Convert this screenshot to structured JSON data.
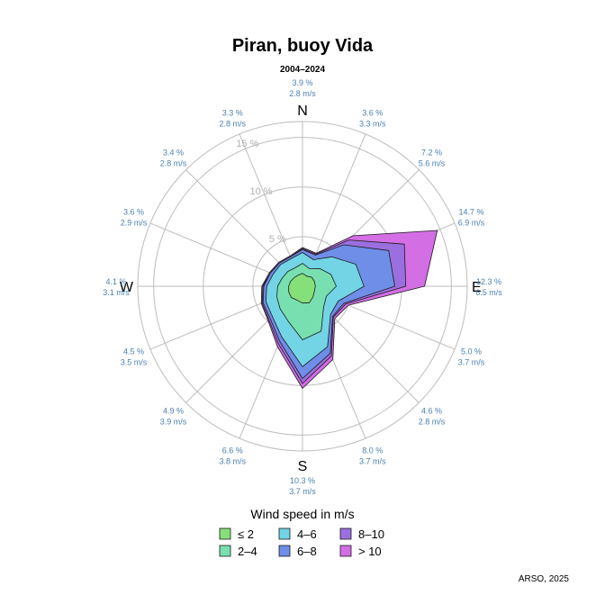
{
  "chart_data": {
    "type": "polar-area",
    "title": "Piran, buoy Vida",
    "subtitle": "2004–2024",
    "cardinals": [
      "N",
      "E",
      "S",
      "W"
    ],
    "rings": [
      5,
      10,
      15
    ],
    "ring_labels": [
      "5 %",
      "10 %",
      "15 %"
    ],
    "rmax": 16.6,
    "directions": [
      0,
      22.5,
      45,
      67.5,
      90,
      112.5,
      135,
      157.5,
      180,
      202.5,
      225,
      247.5,
      270,
      292.5,
      315,
      337.5
    ],
    "direction_stats": [
      {
        "freq": "3.9 %",
        "speed": "2.8 m/s"
      },
      {
        "freq": "3.6 %",
        "speed": "3.3 m/s"
      },
      {
        "freq": "7.2 %",
        "speed": "5.6 m/s"
      },
      {
        "freq": "14.7 %",
        "speed": "6.9 m/s"
      },
      {
        "freq": "12.3 %",
        "speed": "6.5 m/s"
      },
      {
        "freq": "5.0 %",
        "speed": "3.7 m/s"
      },
      {
        "freq": "4.6 %",
        "speed": "2.8 m/s"
      },
      {
        "freq": "8.0 %",
        "speed": "3.7 m/s"
      },
      {
        "freq": "10.3 %",
        "speed": "3.7 m/s"
      },
      {
        "freq": "6.6 %",
        "speed": "3.8 m/s"
      },
      {
        "freq": "4.9 %",
        "speed": "3.9 m/s"
      },
      {
        "freq": "4.5 %",
        "speed": "3.5 m/s"
      },
      {
        "freq": "4.1 %",
        "speed": "3.1 m/s"
      },
      {
        "freq": "3.6 %",
        "speed": "2.9 m/s"
      },
      {
        "freq": "3.4 %",
        "speed": "2.8 m/s"
      },
      {
        "freq": "3.3 %",
        "speed": "2.8 m/s"
      }
    ],
    "series": [
      {
        "name": "> 10",
        "color": "#d36ee5",
        "values": [
          3.9,
          3.6,
          7.2,
          14.7,
          12.3,
          5.0,
          4.6,
          8.0,
          10.3,
          6.6,
          4.9,
          4.5,
          4.1,
          3.6,
          3.4,
          3.3
        ]
      },
      {
        "name": "8–10",
        "color": "#9b6fe0",
        "values": [
          3.8,
          3.5,
          6.6,
          11.1,
          10.4,
          4.7,
          4.4,
          7.6,
          9.8,
          6.3,
          4.8,
          4.4,
          4.0,
          3.5,
          3.3,
          3.2
        ]
      },
      {
        "name": "6–8",
        "color": "#6f8ee8",
        "values": [
          3.7,
          3.4,
          5.9,
          9.4,
          9.3,
          4.5,
          4.3,
          7.3,
          9.3,
          6.0,
          4.6,
          4.3,
          3.9,
          3.5,
          3.3,
          3.2
        ]
      },
      {
        "name": "4–6",
        "color": "#73d4e6",
        "values": [
          3.4,
          2.9,
          4.2,
          5.8,
          6.2,
          3.9,
          4.0,
          6.6,
          8.1,
          5.5,
          4.3,
          4.0,
          3.6,
          3.2,
          3.1,
          3.0
        ]
      },
      {
        "name": "2–4",
        "color": "#78e0b0",
        "values": [
          2.3,
          1.9,
          2.5,
          3.1,
          3.4,
          2.6,
          3.0,
          4.9,
          5.4,
          3.8,
          3.2,
          2.8,
          2.5,
          2.2,
          2.1,
          2.0
        ]
      },
      {
        "name": "≤ 2",
        "color": "#86e07a",
        "values": [
          1.3,
          1.1,
          1.3,
          1.3,
          1.3,
          1.3,
          1.5,
          1.8,
          1.7,
          1.5,
          1.6,
          1.5,
          1.4,
          1.3,
          1.2,
          1.2
        ]
      }
    ],
    "legend": {
      "title": "Wind speed in m/s",
      "entries": [
        "≤ 2",
        "4–6",
        "8–10",
        "2–4",
        "6–8",
        "> 10"
      ],
      "colors": [
        "#86e07a",
        "#73d4e6",
        "#9b6fe0",
        "#78e0b0",
        "#6f8ee8",
        "#d36ee5"
      ]
    },
    "credit": "ARSO, 2025",
    "grid": true
  }
}
